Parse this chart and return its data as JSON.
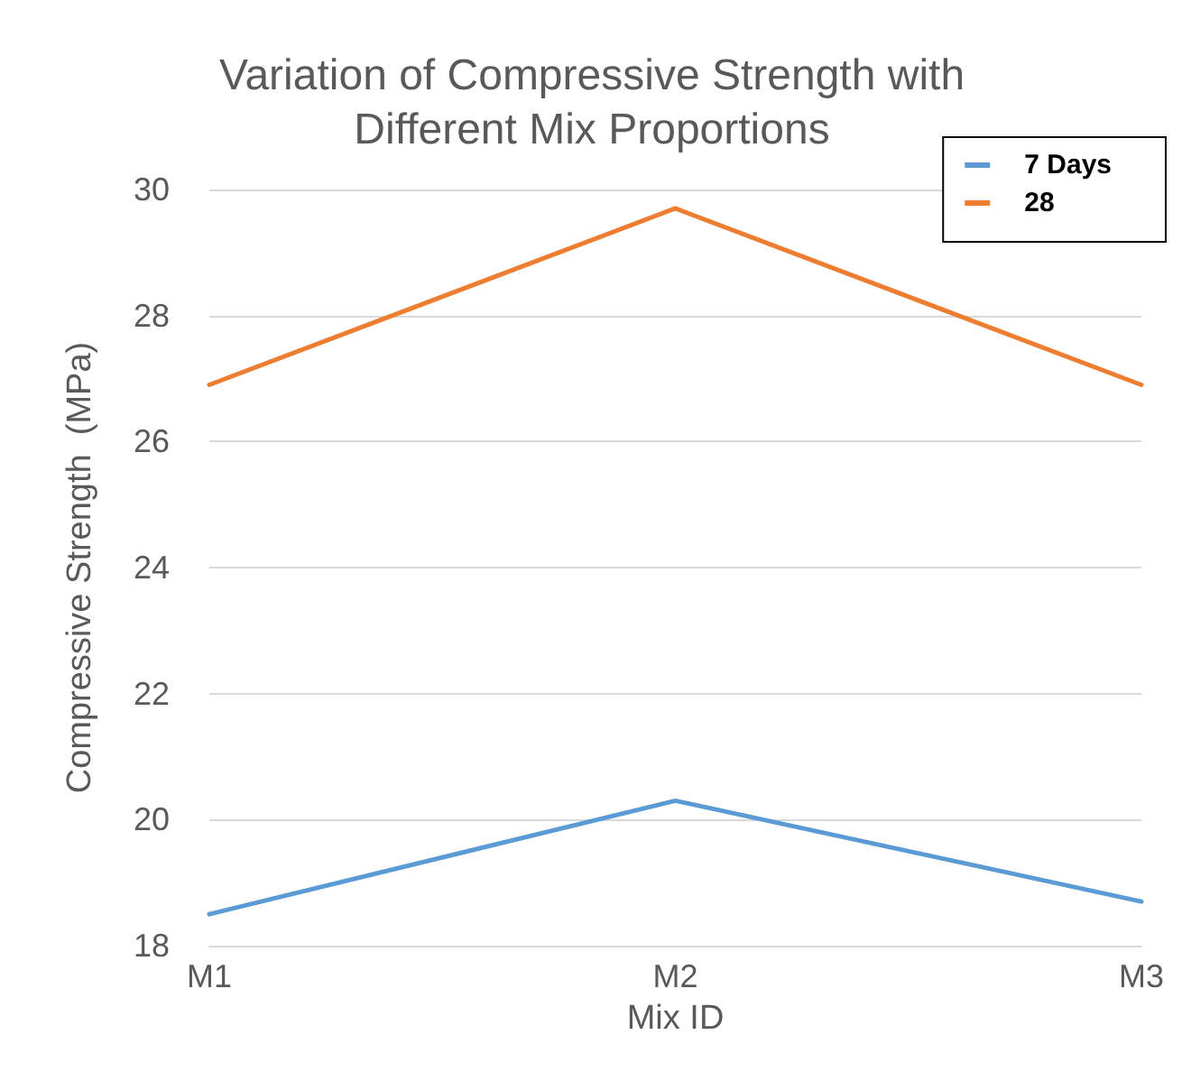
{
  "chart_data": {
    "type": "line",
    "title": "Variation of Compressive Strength with\nDifferent Mix Proportions",
    "xlabel": "Mix ID",
    "ylabel": "Compressive Strength  (MPa)",
    "categories": [
      "M1",
      "M2",
      "M3"
    ],
    "series": [
      {
        "name": "7 Days",
        "color": "#5b9bd5",
        "values": [
          18.5,
          20.3,
          18.7
        ]
      },
      {
        "name": "28",
        "color": "#ed7d31",
        "values": [
          26.9,
          29.7,
          26.9
        ]
      }
    ],
    "ylim": [
      18,
      30
    ],
    "yticks": [
      18,
      20,
      22,
      24,
      26,
      28,
      30
    ],
    "grid": "y",
    "legend": "top right",
    "marker": "none",
    "line_style": "solid"
  }
}
